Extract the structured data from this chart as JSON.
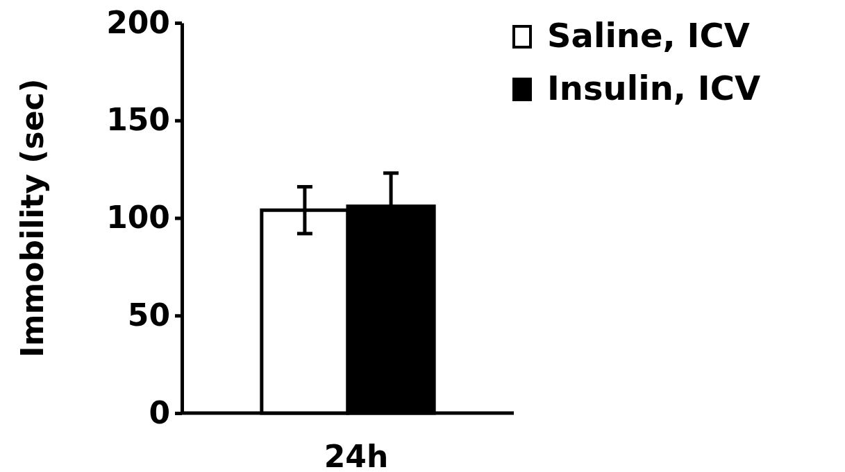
{
  "chart_data": {
    "type": "bar",
    "ylabel": "Immobility (sec)",
    "categories": [
      "24h"
    ],
    "series": [
      {
        "name": "Saline, ICV",
        "color": "#ffffff",
        "values": [
          104
        ],
        "errors": [
          12
        ]
      },
      {
        "name": "Insulin, ICV",
        "color": "#000000",
        "values": [
          106
        ],
        "errors": [
          17
        ]
      }
    ],
    "ylim": [
      0,
      200
    ],
    "yticks": [
      0,
      50,
      100,
      150,
      200
    ],
    "grid": false,
    "legend": "top right"
  }
}
